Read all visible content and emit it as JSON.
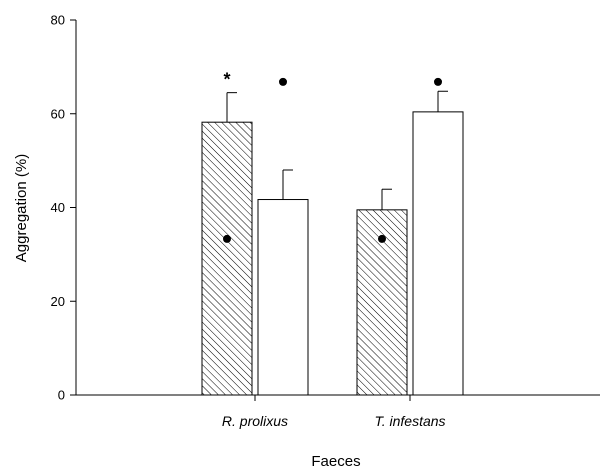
{
  "chart_data": {
    "type": "bar",
    "title": "",
    "xlabel": "Faeces",
    "ylabel": "Aggregation (%)",
    "ylim": [
      0,
      80
    ],
    "yticks": [
      0,
      20,
      40,
      60,
      80
    ],
    "grid": false,
    "legend": "none",
    "categories": [
      "R. prolixus",
      "T. infestans"
    ],
    "series": [
      {
        "values": [
          58.2,
          39.5
        ],
        "errors": [
          6.3,
          4.4
        ],
        "fill": "hatched",
        "color": "#000000"
      },
      {
        "values": [
          41.7,
          60.4
        ],
        "errors": [
          6.3,
          4.4
        ],
        "fill": "white",
        "color": "#ffffff"
      }
    ],
    "annotations": [
      {
        "category": 0,
        "series": 0,
        "y": 68,
        "text": "*"
      },
      {
        "category": 0,
        "series": 0,
        "y": 33.3,
        "marker": "dot"
      },
      {
        "category": 0,
        "series": 1,
        "y": 66.8,
        "marker": "dot"
      },
      {
        "category": 1,
        "series": 0,
        "y": 33.3,
        "marker": "dot"
      },
      {
        "category": 1,
        "series": 1,
        "y": 66.8,
        "marker": "dot"
      }
    ]
  }
}
